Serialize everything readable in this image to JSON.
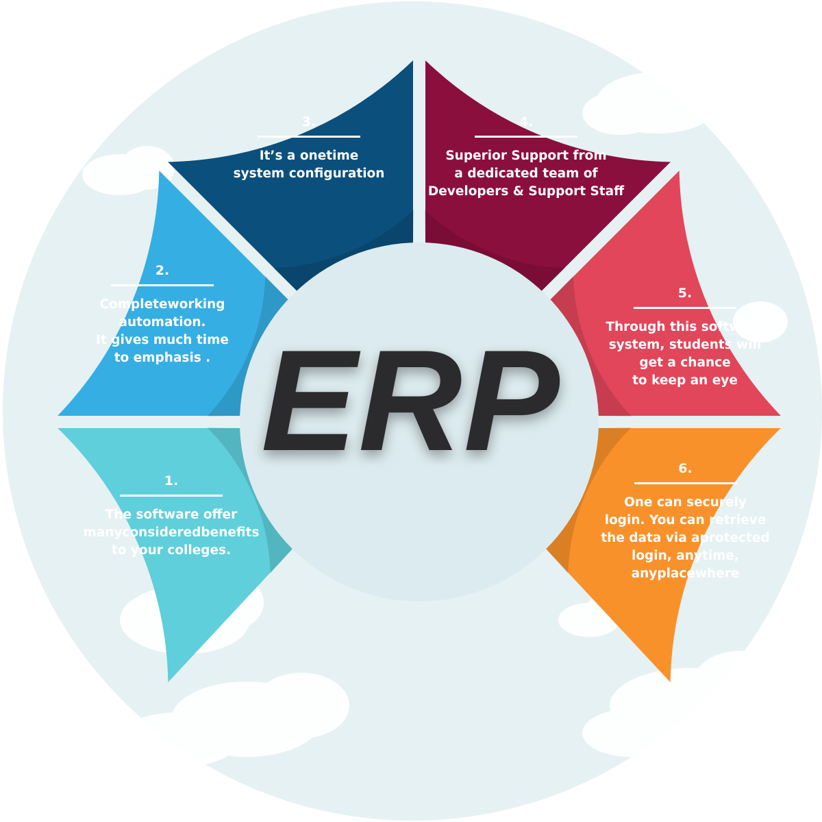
{
  "title": "ERP",
  "colors": {
    "background_circle": "#e6f1f3",
    "cloud": "#ffffff",
    "center_disc": "#dcebef",
    "segment_1": "#5ecfdb",
    "segment_2": "#35aee3",
    "segment_3": "#0b4f7c",
    "segment_4": "#8a0f3d",
    "segment_5": "#e1465a",
    "segment_6": "#f9912a",
    "title": "#2b2b2d"
  },
  "segments": [
    {
      "number": "1.",
      "text": "The software offer\nmanyconsideredbenefits\nto your colleges."
    },
    {
      "number": "2.",
      "text": "Completeworking\nautomation.\nIt gives much time\nto emphasis ."
    },
    {
      "number": "3.",
      "text": "It’s a onetime\nsystem configuration"
    },
    {
      "number": "4.",
      "text": "Superior Support from\na dedicated team of\nDevelopers & Support Staff"
    },
    {
      "number": "5.",
      "text": "Through this software\nsystem, students will\nget a chance\nto keep an eye"
    },
    {
      "number": "6.",
      "text": "One can securely\nlogin. You can retrieve\nthe data via aprotected\nlogin, anytime,\nanyplacewhere"
    }
  ]
}
